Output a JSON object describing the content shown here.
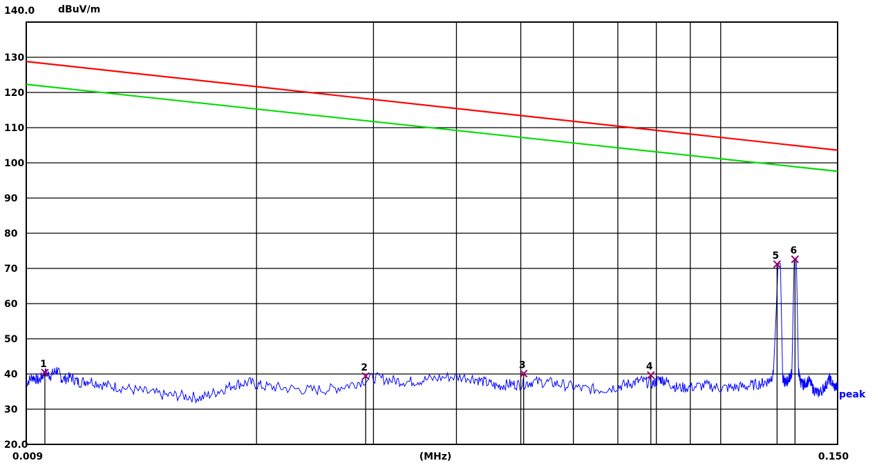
{
  "chart_data": {
    "type": "line",
    "ylabel": "dBuV/m",
    "xlabel": "(MHz)",
    "x_scale": "log",
    "xlim": [
      0.009,
      0.15
    ],
    "ylim": [
      20,
      140
    ],
    "x_tick_labels": [
      "0.009",
      "0.150"
    ],
    "y_tick_labels": [
      "140.0",
      "130",
      "120",
      "110",
      "100",
      "90",
      "80",
      "70",
      "60",
      "50",
      "40",
      "30",
      "20.0"
    ],
    "y_ticks": [
      140,
      130,
      120,
      110,
      100,
      90,
      80,
      70,
      60,
      50,
      40,
      30,
      20
    ],
    "x_grid": [
      0.02,
      0.03,
      0.04,
      0.05,
      0.06,
      0.07,
      0.08,
      0.09,
      0.1
    ],
    "grid": true,
    "limit_lines": [
      {
        "color": "#ff0000",
        "x": [
          0.009,
          0.15
        ],
        "y": [
          128.8,
          103.6
        ]
      },
      {
        "color": "#00dd00",
        "x": [
          0.009,
          0.15
        ],
        "y": [
          122.3,
          97.6
        ]
      }
    ],
    "trace": {
      "name": "peak",
      "color": "#0000ff",
      "x": [
        0.009,
        0.0092,
        0.0094,
        0.0096,
        0.0098,
        0.01,
        0.0102,
        0.0105,
        0.0108,
        0.0112,
        0.0118,
        0.0125,
        0.0135,
        0.0145,
        0.0155,
        0.0165,
        0.0175,
        0.0185,
        0.0195,
        0.0205,
        0.022,
        0.024,
        0.026,
        0.028,
        0.03,
        0.032,
        0.034,
        0.036,
        0.039,
        0.042,
        0.044,
        0.046,
        0.048,
        0.05,
        0.052,
        0.055,
        0.058,
        0.062,
        0.066,
        0.07,
        0.073,
        0.076,
        0.079,
        0.081,
        0.083,
        0.086,
        0.09,
        0.095,
        0.1,
        0.105,
        0.11,
        0.115,
        0.118,
        0.12,
        0.121,
        0.122,
        0.123,
        0.124,
        0.125,
        0.126,
        0.127,
        0.128,
        0.129,
        0.13,
        0.131,
        0.132,
        0.133,
        0.134,
        0.136,
        0.138,
        0.14,
        0.142,
        0.144,
        0.146,
        0.148,
        0.15
      ],
      "y": [
        37.5,
        39.2,
        38.1,
        40.3,
        39.6,
        41.2,
        38.4,
        39.1,
        37.6,
        38.2,
        36.8,
        36.2,
        35.0,
        34.0,
        33.8,
        33.2,
        35.1,
        37.0,
        37.6,
        36.5,
        36.0,
        35.4,
        35.7,
        37.2,
        39.0,
        38.2,
        37.8,
        38.4,
        39.2,
        39.0,
        37.8,
        36.5,
        37.1,
        37.0,
        37.8,
        37.6,
        36.9,
        35.8,
        35.6,
        36.4,
        37.3,
        38.1,
        37.2,
        38.6,
        37.8,
        36.1,
        36.2,
        36.8,
        36.0,
        36.2,
        36.6,
        37.3,
        38.0,
        39.8,
        54.0,
        71.2,
        71.4,
        38.5,
        37.6,
        38.0,
        39.1,
        40.2,
        71.8,
        72.6,
        40.5,
        37.7,
        36.9,
        37.4,
        38.1,
        35.5,
        34.6,
        35.3,
        36.8,
        38.7,
        36.5,
        36.2
      ]
    },
    "markers": [
      {
        "label": "1",
        "x": 0.0096,
        "y": 40.4
      },
      {
        "label": "2",
        "x": 0.0292,
        "y": 39.4
      },
      {
        "label": "3",
        "x": 0.0505,
        "y": 40.1
      },
      {
        "label": "4",
        "x": 0.0785,
        "y": 39.7
      },
      {
        "label": "5",
        "x": 0.1216,
        "y": 71.2
      },
      {
        "label": "6",
        "x": 0.1294,
        "y": 72.6
      }
    ]
  }
}
